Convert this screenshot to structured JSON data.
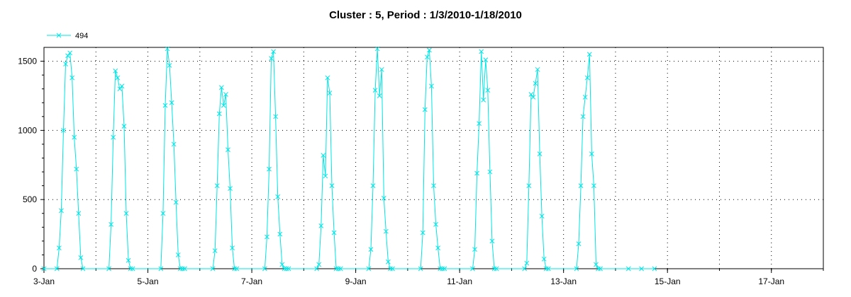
{
  "chart_data": {
    "type": "line",
    "title": "Cluster : 5, Period : 1/3/2010-1/18/2010",
    "legend": {
      "placement": "top-left",
      "entries": [
        "494"
      ]
    },
    "xlim": [
      "2010-01-03",
      "2010-01-18"
    ],
    "ylim": [
      0,
      1600
    ],
    "grid": true,
    "series_color": "#00e5e5",
    "x_ticks": [
      "3-Jan",
      "5-Jan",
      "7-Jan",
      "9-Jan",
      "11-Jan",
      "13-Jan",
      "15-Jan",
      "17-Jan"
    ],
    "y_ticks": [
      "0",
      "500",
      "1000",
      "1500"
    ],
    "series": [
      {
        "name": "494",
        "x": [
          "2010-01-03 00:00",
          "2010-01-03 06:00",
          "2010-01-03 07:00",
          "2010-01-03 08:00",
          "2010-01-03 09:00",
          "2010-01-03 10:00",
          "2010-01-03 11:00",
          "2010-01-03 12:00",
          "2010-01-03 13:00",
          "2010-01-03 14:00",
          "2010-01-03 15:00",
          "2010-01-03 16:00",
          "2010-01-03 17:00",
          "2010-01-03 18:00",
          "2010-01-04 06:00",
          "2010-01-04 07:00",
          "2010-01-04 08:00",
          "2010-01-04 09:00",
          "2010-01-04 10:00",
          "2010-01-04 11:00",
          "2010-01-04 12:00",
          "2010-01-04 13:00",
          "2010-01-04 14:00",
          "2010-01-04 15:00",
          "2010-01-04 16:00",
          "2010-01-04 17:00",
          "2010-01-05 06:00",
          "2010-01-05 07:00",
          "2010-01-05 08:00",
          "2010-01-05 09:00",
          "2010-01-05 10:00",
          "2010-01-05 11:00",
          "2010-01-05 12:00",
          "2010-01-05 13:00",
          "2010-01-05 14:00",
          "2010-01-05 15:00",
          "2010-01-05 16:00",
          "2010-01-05 17:00",
          "2010-01-06 06:00",
          "2010-01-06 07:00",
          "2010-01-06 08:00",
          "2010-01-06 09:00",
          "2010-01-06 10:00",
          "2010-01-06 11:00",
          "2010-01-06 12:00",
          "2010-01-06 13:00",
          "2010-01-06 14:00",
          "2010-01-06 15:00",
          "2010-01-06 16:00",
          "2010-01-06 17:00",
          "2010-01-07 06:00",
          "2010-01-07 07:00",
          "2010-01-07 08:00",
          "2010-01-07 09:00",
          "2010-01-07 10:00",
          "2010-01-07 11:00",
          "2010-01-07 12:00",
          "2010-01-07 13:00",
          "2010-01-07 14:00",
          "2010-01-07 15:00",
          "2010-01-07 16:00",
          "2010-01-07 17:00",
          "2010-01-08 06:00",
          "2010-01-08 07:00",
          "2010-01-08 08:00",
          "2010-01-08 09:00",
          "2010-01-08 10:00",
          "2010-01-08 11:00",
          "2010-01-08 12:00",
          "2010-01-08 13:00",
          "2010-01-08 14:00",
          "2010-01-08 15:00",
          "2010-01-08 16:00",
          "2010-01-08 17:00",
          "2010-01-09 06:00",
          "2010-01-09 07:00",
          "2010-01-09 08:00",
          "2010-01-09 09:00",
          "2010-01-09 10:00",
          "2010-01-09 11:00",
          "2010-01-09 12:00",
          "2010-01-09 13:00",
          "2010-01-09 14:00",
          "2010-01-09 15:00",
          "2010-01-09 16:00",
          "2010-01-09 17:00",
          "2010-01-10 06:00",
          "2010-01-10 07:00",
          "2010-01-10 08:00",
          "2010-01-10 09:00",
          "2010-01-10 10:00",
          "2010-01-10 11:00",
          "2010-01-10 12:00",
          "2010-01-10 13:00",
          "2010-01-10 14:00",
          "2010-01-10 15:00",
          "2010-01-10 16:00",
          "2010-01-10 17:00",
          "2010-01-11 06:00",
          "2010-01-11 07:00",
          "2010-01-11 08:00",
          "2010-01-11 09:00",
          "2010-01-11 10:00",
          "2010-01-11 11:00",
          "2010-01-11 12:00",
          "2010-01-11 13:00",
          "2010-01-11 14:00",
          "2010-01-11 15:00",
          "2010-01-11 16:00",
          "2010-01-11 17:00",
          "2010-01-12 06:00",
          "2010-01-12 07:00",
          "2010-01-12 08:00",
          "2010-01-12 09:00",
          "2010-01-12 10:00",
          "2010-01-12 11:00",
          "2010-01-12 12:00",
          "2010-01-12 13:00",
          "2010-01-12 14:00",
          "2010-01-12 15:00",
          "2010-01-12 16:00",
          "2010-01-12 17:00",
          "2010-01-13 06:00",
          "2010-01-13 07:00",
          "2010-01-13 08:00",
          "2010-01-13 09:00",
          "2010-01-13 10:00",
          "2010-01-13 11:00",
          "2010-01-13 12:00",
          "2010-01-13 13:00",
          "2010-01-13 14:00",
          "2010-01-13 15:00",
          "2010-01-13 16:00",
          "2010-01-13 17:00",
          "2010-01-14 06:00",
          "2010-01-14 12:00",
          "2010-01-14 18:00"
        ],
        "y": [
          0,
          0,
          150,
          420,
          1000,
          1480,
          1540,
          1560,
          1380,
          950,
          720,
          400,
          80,
          0,
          0,
          320,
          950,
          1430,
          1380,
          1300,
          1320,
          1030,
          400,
          60,
          0,
          0,
          0,
          400,
          1180,
          1590,
          1470,
          1200,
          900,
          480,
          100,
          0,
          0,
          0,
          0,
          130,
          600,
          1120,
          1310,
          1180,
          1260,
          860,
          580,
          150,
          0,
          0,
          0,
          230,
          720,
          1520,
          1570,
          1100,
          520,
          250,
          30,
          0,
          0,
          0,
          0,
          30,
          310,
          820,
          670,
          1380,
          1270,
          600,
          260,
          0,
          0,
          0,
          0,
          140,
          600,
          1290,
          1590,
          1250,
          1440,
          510,
          270,
          50,
          0,
          0,
          0,
          260,
          1150,
          1530,
          1580,
          1320,
          600,
          320,
          150,
          0,
          0,
          0,
          0,
          140,
          690,
          1050,
          1570,
          1220,
          1510,
          1290,
          700,
          200,
          0,
          0,
          0,
          40,
          600,
          1260,
          1240,
          1340,
          1440,
          830,
          380,
          70,
          0,
          0,
          0,
          180,
          600,
          1100,
          1240,
          1380,
          1550,
          830,
          600,
          30,
          0,
          0,
          0,
          0,
          0
        ]
      }
    ]
  }
}
